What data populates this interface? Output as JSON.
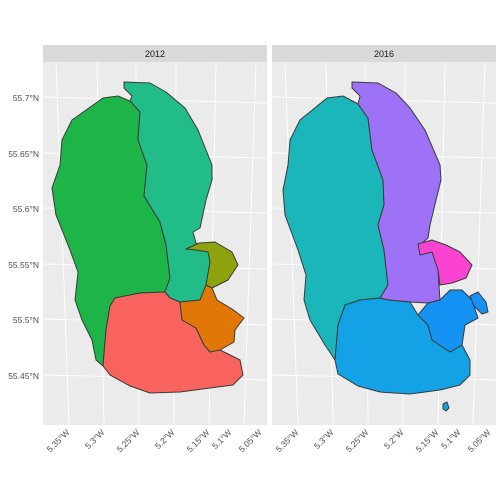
{
  "panels": [
    {
      "label": "2012",
      "ward_colors": [
        "#1DB548",
        "#21BC88",
        "#F8645D",
        "#8DA20E",
        "#E07707"
      ]
    },
    {
      "label": "2016",
      "ward_colors": [
        "#1AB6BA",
        "#9E72F6",
        "#13A2E6",
        "#FA43D1",
        "#1593F5"
      ]
    }
  ],
  "y_ticks": [
    "55.7°N",
    "55.65°N",
    "55.6°N",
    "55.55°N",
    "55.5°N",
    "55.45°N"
  ],
  "x_ticks": [
    "5.35°W",
    "5.3°W",
    "5.25°W",
    "5.2°W",
    "5.15°W",
    "5.1°W",
    "5.05°W"
  ],
  "colors": {
    "panel_bg": "#EBEBEB",
    "strip_bg": "#D9D9D9",
    "grid": "#FFFFFF",
    "outline": "#3A3A3A"
  }
}
